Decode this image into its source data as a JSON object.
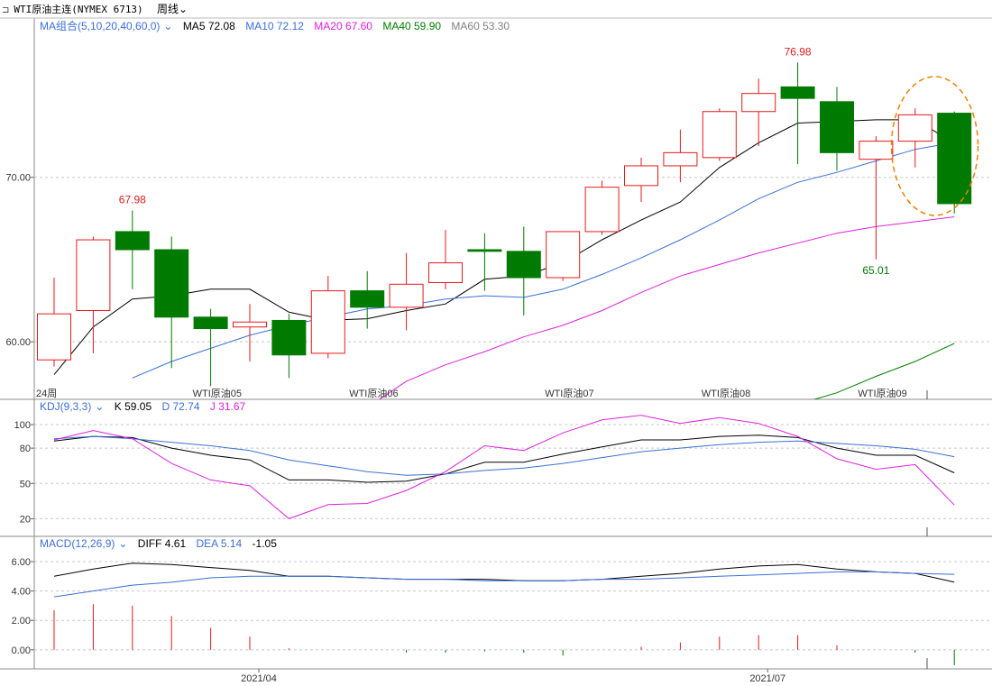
{
  "header": {
    "instrument": "WTI原油主连(NYMEX 6713)",
    "period": "周线",
    "chevron_icon": "chevron-down-icon",
    "period_icon": "expand-icon"
  },
  "colors": {
    "up": "#e41a1c",
    "down": "#007a00",
    "ma5": "#000000",
    "ma10": "#3a6fd8",
    "ma20": "#e020e0",
    "ma40": "#008000",
    "ma60": "#808080",
    "k": "#000000",
    "d": "#3a6fd8",
    "j": "#e020e0",
    "highlight": "#f08000"
  },
  "legends": {
    "ma": {
      "name": "MA组合(5,10,20,40,60,0)",
      "items": [
        {
          "label": "MA5 72.08",
          "color": "#000000"
        },
        {
          "label": "MA10 72.12",
          "color": "#3a6fd8"
        },
        {
          "label": "MA20 67.60",
          "color": "#e020e0"
        },
        {
          "label": "MA40 59.90",
          "color": "#008000"
        },
        {
          "label": "MA60 53.30",
          "color": "#808080"
        }
      ]
    },
    "kdj": {
      "name": "KDJ(9,3,3)",
      "items": [
        {
          "label": "K 59.05",
          "color": "#000000"
        },
        {
          "label": "D 72.74",
          "color": "#3a6fd8"
        },
        {
          "label": "J 31.67",
          "color": "#e020e0"
        }
      ]
    },
    "macd": {
      "name": "MACD(12,26,9)",
      "items": [
        {
          "label": "DIFF 4.61",
          "color": "#000000"
        },
        {
          "label": "DEA 5.14",
          "color": "#3a6fd8"
        },
        {
          "label": "-1.05",
          "color": "#000000"
        }
      ]
    }
  },
  "chart_data": [
    {
      "type": "candlestick",
      "panel": "price",
      "ylim": [
        56.5,
        78.7
      ],
      "yticks": [
        {
          "value": 60,
          "label": "60.00"
        },
        {
          "value": 70,
          "label": "70.00"
        }
      ],
      "candles": [
        {
          "o": 58.9,
          "h": 63.9,
          "l": 58.5,
          "c": 61.7
        },
        {
          "o": 61.9,
          "h": 66.4,
          "l": 59.3,
          "c": 66.2
        },
        {
          "o": 66.7,
          "h": 67.98,
          "l": 63.2,
          "c": 65.6
        },
        {
          "o": 65.6,
          "h": 66.4,
          "l": 58.4,
          "c": 61.5
        },
        {
          "o": 61.5,
          "h": 62.0,
          "l": 57.3,
          "c": 60.8
        },
        {
          "o": 60.9,
          "h": 62.3,
          "l": 58.8,
          "c": 61.2
        },
        {
          "o": 61.3,
          "h": 61.7,
          "l": 57.8,
          "c": 59.2
        },
        {
          "o": 59.3,
          "h": 64.0,
          "l": 59.0,
          "c": 63.1
        },
        {
          "o": 63.1,
          "h": 64.3,
          "l": 60.8,
          "c": 62.1
        },
        {
          "o": 62.1,
          "h": 65.4,
          "l": 60.7,
          "c": 63.5
        },
        {
          "o": 63.6,
          "h": 66.8,
          "l": 63.2,
          "c": 64.8
        },
        {
          "o": 65.6,
          "h": 66.6,
          "l": 63.1,
          "c": 65.5
        },
        {
          "o": 65.5,
          "h": 67.0,
          "l": 61.6,
          "c": 63.9
        },
        {
          "o": 63.9,
          "h": 66.6,
          "l": 63.7,
          "c": 66.7
        },
        {
          "o": 66.7,
          "h": 69.8,
          "l": 66.5,
          "c": 69.4
        },
        {
          "o": 69.5,
          "h": 71.2,
          "l": 68.5,
          "c": 70.7
        },
        {
          "o": 70.7,
          "h": 72.9,
          "l": 69.7,
          "c": 71.5
        },
        {
          "o": 71.2,
          "h": 74.2,
          "l": 71.0,
          "c": 74.0
        },
        {
          "o": 74.0,
          "h": 76.0,
          "l": 71.9,
          "c": 75.1
        },
        {
          "o": 75.5,
          "h": 76.98,
          "l": 70.8,
          "c": 74.8
        },
        {
          "o": 74.6,
          "h": 75.5,
          "l": 70.4,
          "c": 71.5
        },
        {
          "o": 71.1,
          "h": 72.5,
          "l": 65.01,
          "c": 72.2
        },
        {
          "o": 72.2,
          "h": 74.2,
          "l": 70.6,
          "c": 73.8
        },
        {
          "o": 73.9,
          "h": 74.0,
          "l": 67.8,
          "c": 68.4
        }
      ],
      "ma_lines": [
        {
          "name": "MA5",
          "values": [
            58.0,
            60.9,
            62.6,
            62.8,
            63.2,
            63.2,
            61.8,
            61.3,
            61.4,
            61.9,
            62.3,
            63.8,
            64.0,
            64.8,
            66.2,
            67.4,
            68.5,
            70.6,
            72.1,
            73.3,
            73.4,
            73.5,
            73.5,
            72.1
          ]
        },
        {
          "name": "MA10",
          "values": [
            null,
            null,
            57.8,
            58.8,
            59.6,
            60.4,
            61.0,
            61.5,
            62.0,
            62.2,
            62.6,
            62.8,
            62.7,
            63.2,
            64.1,
            65.1,
            66.2,
            67.4,
            68.7,
            69.7,
            70.3,
            71.0,
            71.7,
            72.12
          ]
        },
        {
          "name": "MA20",
          "values": [
            null,
            null,
            null,
            null,
            null,
            null,
            null,
            null,
            56.0,
            57.6,
            58.6,
            59.4,
            60.3,
            61.0,
            61.9,
            63.0,
            64.0,
            64.7,
            65.4,
            66.0,
            66.6,
            67.0,
            67.3,
            67.6
          ]
        },
        {
          "name": "MA40",
          "values": [
            null,
            null,
            null,
            null,
            null,
            null,
            null,
            null,
            null,
            null,
            null,
            null,
            null,
            null,
            null,
            null,
            null,
            null,
            null,
            56.2,
            56.9,
            57.9,
            58.8,
            59.9
          ]
        }
      ],
      "x_labels": [
        {
          "index": 0,
          "label": "24周"
        },
        {
          "index": 4,
          "label": "WTI原油05"
        },
        {
          "index": 8,
          "label": "WTI原油06"
        },
        {
          "index": 13,
          "label": "WTI原油07"
        },
        {
          "index": 17,
          "label": "WTI原油08"
        },
        {
          "index": 21,
          "label": "WTI原油09"
        }
      ],
      "annotations": [
        {
          "index": 2,
          "value": 67.98,
          "label": "67.98",
          "pos": "above",
          "color": "#e41a1c"
        },
        {
          "index": 19,
          "value": 76.98,
          "label": "76.98",
          "pos": "above",
          "color": "#e41a1c"
        },
        {
          "index": 21,
          "value": 65.01,
          "label": "65.01",
          "pos": "below",
          "color": "#007a00"
        }
      ],
      "highlight": {
        "from_index": 22,
        "to_index": 23
      }
    },
    {
      "type": "line",
      "panel": "kdj",
      "ylim": [
        5,
        110
      ],
      "yticks": [
        {
          "value": 100,
          "label": "100"
        },
        {
          "value": 80,
          "label": "80"
        },
        {
          "value": 50,
          "label": "50"
        },
        {
          "value": 20,
          "label": "20"
        }
      ],
      "series": [
        {
          "name": "K",
          "values": [
            86,
            90,
            89,
            80,
            74,
            70,
            53,
            53,
            51,
            52,
            58,
            68,
            68,
            75,
            81,
            87,
            87,
            90,
            91,
            89,
            80,
            74,
            74,
            59.05
          ]
        },
        {
          "name": "D",
          "values": [
            88,
            90,
            88,
            85,
            82,
            78,
            70,
            65,
            60,
            57,
            58,
            61,
            63,
            67,
            72,
            77,
            80,
            83,
            85,
            86,
            84,
            82,
            79,
            72.74
          ]
        },
        {
          "name": "J",
          "values": [
            87,
            95,
            88,
            67,
            53,
            48,
            20,
            32,
            33,
            44,
            60,
            82,
            78,
            93,
            104,
            108,
            101,
            106,
            101,
            90,
            71,
            62,
            66,
            31.67
          ]
        }
      ]
    },
    {
      "type": "bar+line",
      "panel": "macd",
      "ylim": [
        -1.3,
        6.8
      ],
      "yticks": [
        {
          "value": 6,
          "label": "6.00"
        },
        {
          "value": 4,
          "label": "4.00"
        },
        {
          "value": 2,
          "label": "2.00"
        },
        {
          "value": 0,
          "label": "0.00"
        }
      ],
      "x_labels": [
        {
          "index": 5,
          "label": "2021/04"
        },
        {
          "index": 18,
          "label": "2021/07"
        }
      ],
      "series": [
        {
          "name": "DIFF",
          "values": [
            5.0,
            5.5,
            5.9,
            5.8,
            5.6,
            5.4,
            5.0,
            5.0,
            4.9,
            4.8,
            4.8,
            4.8,
            4.7,
            4.7,
            4.8,
            5.0,
            5.2,
            5.5,
            5.7,
            5.8,
            5.5,
            5.3,
            5.2,
            4.61
          ]
        },
        {
          "name": "DEA",
          "values": [
            3.6,
            4.0,
            4.4,
            4.6,
            4.9,
            5.0,
            5.0,
            5.0,
            4.9,
            4.8,
            4.8,
            4.7,
            4.7,
            4.7,
            4.8,
            4.8,
            4.9,
            5.0,
            5.1,
            5.2,
            5.3,
            5.3,
            5.2,
            5.14
          ]
        }
      ],
      "histogram": [
        2.7,
        3.1,
        3.0,
        2.3,
        1.5,
        0.9,
        0.1,
        0.0,
        0.0,
        -0.2,
        -0.2,
        -0.1,
        -0.2,
        -0.4,
        0.0,
        0.2,
        0.5,
        0.9,
        1.0,
        1.0,
        0.3,
        0.0,
        -0.2,
        -1.05
      ]
    }
  ]
}
